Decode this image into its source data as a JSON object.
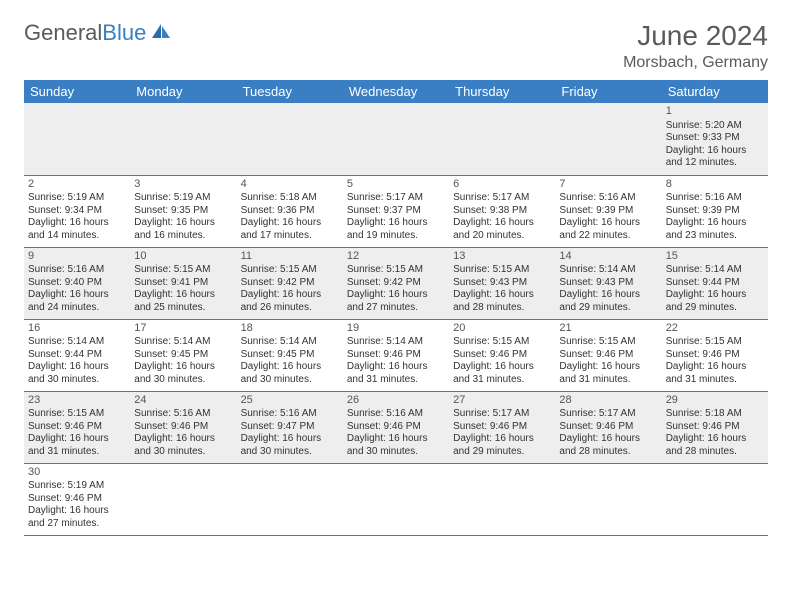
{
  "brand": {
    "name_a": "General",
    "name_b": "Blue"
  },
  "title": "June 2024",
  "location": "Morsbach, Germany",
  "colors": {
    "header_bg": "#3a7fc4",
    "header_text": "#ffffff",
    "row_odd_bg": "#eeeeee",
    "row_even_bg": "#ffffff",
    "border": "#3a7fc4",
    "text": "#333333",
    "title_text": "#5a5a5a"
  },
  "dayHeaders": [
    "Sunday",
    "Monday",
    "Tuesday",
    "Wednesday",
    "Thursday",
    "Friday",
    "Saturday"
  ],
  "weeks": [
    [
      null,
      null,
      null,
      null,
      null,
      null,
      {
        "n": "1",
        "sr": "Sunrise: 5:20 AM",
        "ss": "Sunset: 9:33 PM",
        "d1": "Daylight: 16 hours",
        "d2": "and 12 minutes."
      }
    ],
    [
      {
        "n": "2",
        "sr": "Sunrise: 5:19 AM",
        "ss": "Sunset: 9:34 PM",
        "d1": "Daylight: 16 hours",
        "d2": "and 14 minutes."
      },
      {
        "n": "3",
        "sr": "Sunrise: 5:19 AM",
        "ss": "Sunset: 9:35 PM",
        "d1": "Daylight: 16 hours",
        "d2": "and 16 minutes."
      },
      {
        "n": "4",
        "sr": "Sunrise: 5:18 AM",
        "ss": "Sunset: 9:36 PM",
        "d1": "Daylight: 16 hours",
        "d2": "and 17 minutes."
      },
      {
        "n": "5",
        "sr": "Sunrise: 5:17 AM",
        "ss": "Sunset: 9:37 PM",
        "d1": "Daylight: 16 hours",
        "d2": "and 19 minutes."
      },
      {
        "n": "6",
        "sr": "Sunrise: 5:17 AM",
        "ss": "Sunset: 9:38 PM",
        "d1": "Daylight: 16 hours",
        "d2": "and 20 minutes."
      },
      {
        "n": "7",
        "sr": "Sunrise: 5:16 AM",
        "ss": "Sunset: 9:39 PM",
        "d1": "Daylight: 16 hours",
        "d2": "and 22 minutes."
      },
      {
        "n": "8",
        "sr": "Sunrise: 5:16 AM",
        "ss": "Sunset: 9:39 PM",
        "d1": "Daylight: 16 hours",
        "d2": "and 23 minutes."
      }
    ],
    [
      {
        "n": "9",
        "sr": "Sunrise: 5:16 AM",
        "ss": "Sunset: 9:40 PM",
        "d1": "Daylight: 16 hours",
        "d2": "and 24 minutes."
      },
      {
        "n": "10",
        "sr": "Sunrise: 5:15 AM",
        "ss": "Sunset: 9:41 PM",
        "d1": "Daylight: 16 hours",
        "d2": "and 25 minutes."
      },
      {
        "n": "11",
        "sr": "Sunrise: 5:15 AM",
        "ss": "Sunset: 9:42 PM",
        "d1": "Daylight: 16 hours",
        "d2": "and 26 minutes."
      },
      {
        "n": "12",
        "sr": "Sunrise: 5:15 AM",
        "ss": "Sunset: 9:42 PM",
        "d1": "Daylight: 16 hours",
        "d2": "and 27 minutes."
      },
      {
        "n": "13",
        "sr": "Sunrise: 5:15 AM",
        "ss": "Sunset: 9:43 PM",
        "d1": "Daylight: 16 hours",
        "d2": "and 28 minutes."
      },
      {
        "n": "14",
        "sr": "Sunrise: 5:14 AM",
        "ss": "Sunset: 9:43 PM",
        "d1": "Daylight: 16 hours",
        "d2": "and 29 minutes."
      },
      {
        "n": "15",
        "sr": "Sunrise: 5:14 AM",
        "ss": "Sunset: 9:44 PM",
        "d1": "Daylight: 16 hours",
        "d2": "and 29 minutes."
      }
    ],
    [
      {
        "n": "16",
        "sr": "Sunrise: 5:14 AM",
        "ss": "Sunset: 9:44 PM",
        "d1": "Daylight: 16 hours",
        "d2": "and 30 minutes."
      },
      {
        "n": "17",
        "sr": "Sunrise: 5:14 AM",
        "ss": "Sunset: 9:45 PM",
        "d1": "Daylight: 16 hours",
        "d2": "and 30 minutes."
      },
      {
        "n": "18",
        "sr": "Sunrise: 5:14 AM",
        "ss": "Sunset: 9:45 PM",
        "d1": "Daylight: 16 hours",
        "d2": "and 30 minutes."
      },
      {
        "n": "19",
        "sr": "Sunrise: 5:14 AM",
        "ss": "Sunset: 9:46 PM",
        "d1": "Daylight: 16 hours",
        "d2": "and 31 minutes."
      },
      {
        "n": "20",
        "sr": "Sunrise: 5:15 AM",
        "ss": "Sunset: 9:46 PM",
        "d1": "Daylight: 16 hours",
        "d2": "and 31 minutes."
      },
      {
        "n": "21",
        "sr": "Sunrise: 5:15 AM",
        "ss": "Sunset: 9:46 PM",
        "d1": "Daylight: 16 hours",
        "d2": "and 31 minutes."
      },
      {
        "n": "22",
        "sr": "Sunrise: 5:15 AM",
        "ss": "Sunset: 9:46 PM",
        "d1": "Daylight: 16 hours",
        "d2": "and 31 minutes."
      }
    ],
    [
      {
        "n": "23",
        "sr": "Sunrise: 5:15 AM",
        "ss": "Sunset: 9:46 PM",
        "d1": "Daylight: 16 hours",
        "d2": "and 31 minutes."
      },
      {
        "n": "24",
        "sr": "Sunrise: 5:16 AM",
        "ss": "Sunset: 9:46 PM",
        "d1": "Daylight: 16 hours",
        "d2": "and 30 minutes."
      },
      {
        "n": "25",
        "sr": "Sunrise: 5:16 AM",
        "ss": "Sunset: 9:47 PM",
        "d1": "Daylight: 16 hours",
        "d2": "and 30 minutes."
      },
      {
        "n": "26",
        "sr": "Sunrise: 5:16 AM",
        "ss": "Sunset: 9:46 PM",
        "d1": "Daylight: 16 hours",
        "d2": "and 30 minutes."
      },
      {
        "n": "27",
        "sr": "Sunrise: 5:17 AM",
        "ss": "Sunset: 9:46 PM",
        "d1": "Daylight: 16 hours",
        "d2": "and 29 minutes."
      },
      {
        "n": "28",
        "sr": "Sunrise: 5:17 AM",
        "ss": "Sunset: 9:46 PM",
        "d1": "Daylight: 16 hours",
        "d2": "and 28 minutes."
      },
      {
        "n": "29",
        "sr": "Sunrise: 5:18 AM",
        "ss": "Sunset: 9:46 PM",
        "d1": "Daylight: 16 hours",
        "d2": "and 28 minutes."
      }
    ],
    [
      {
        "n": "30",
        "sr": "Sunrise: 5:19 AM",
        "ss": "Sunset: 9:46 PM",
        "d1": "Daylight: 16 hours",
        "d2": "and 27 minutes."
      },
      null,
      null,
      null,
      null,
      null,
      null
    ]
  ]
}
